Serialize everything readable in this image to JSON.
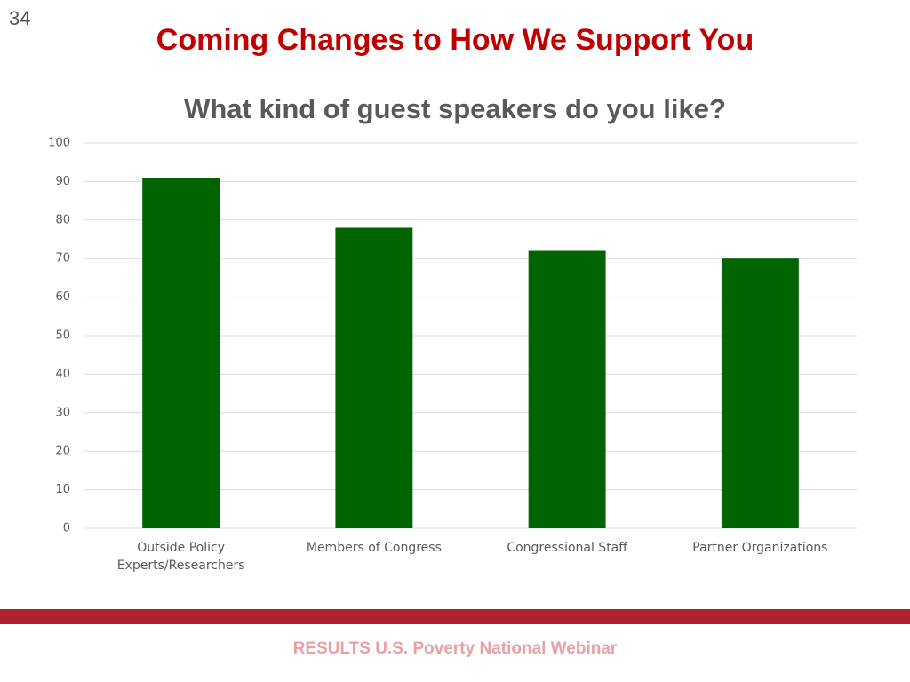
{
  "slide_number": "34",
  "title": "Coming Changes to How We Support You",
  "footer": "RESULTS U.S. Poverty National Webinar",
  "chart_data": {
    "type": "bar",
    "title": "What kind of guest speakers do you like?",
    "categories": [
      "Outside Policy Experts/Researchers",
      "Members of Congress",
      "Congressional Staff",
      "Partner Organizations"
    ],
    "values": [
      91,
      78,
      72,
      70
    ],
    "color": "#006400",
    "ylim": [
      0,
      100
    ],
    "yticks": [
      0,
      10,
      20,
      30,
      40,
      50,
      60,
      70,
      80,
      90,
      100
    ],
    "grid": true
  }
}
